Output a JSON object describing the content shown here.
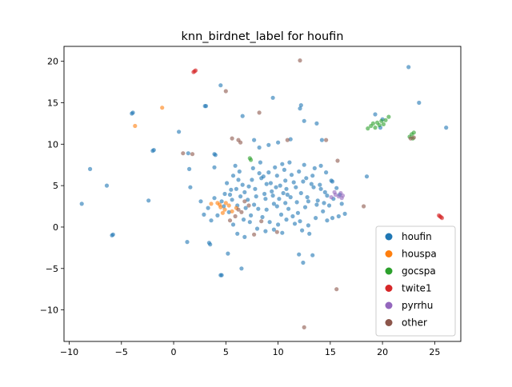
{
  "chart_data": {
    "type": "scatter",
    "title": "knn_birdnet_label for houfin",
    "xlabel": "",
    "ylabel": "",
    "xlim": [
      -10.5,
      27.5
    ],
    "ylim": [
      -13.8,
      21.8
    ],
    "x_ticks": [
      -10,
      -5,
      0,
      5,
      10,
      15,
      20,
      25
    ],
    "y_ticks": [
      -10,
      -5,
      0,
      5,
      10,
      15,
      20
    ],
    "x_tick_labels": [
      "−10",
      "−5",
      "0",
      "5",
      "10",
      "15",
      "20",
      "25"
    ],
    "y_tick_labels": [
      "−10",
      "−5",
      "0",
      "5",
      "10",
      "15",
      "20"
    ],
    "grid": false,
    "legend_position": "lower-right",
    "series": [
      {
        "name": "houfin",
        "color": "#1f77b4",
        "points": [
          [
            -4,
            13.7
          ],
          [
            -3.9,
            13.8
          ],
          [
            -1.9,
            9.3
          ],
          [
            -2,
            9.2
          ],
          [
            -8,
            7
          ],
          [
            -8.8,
            2.8
          ],
          [
            -6.4,
            5
          ],
          [
            -5.9,
            -1
          ],
          [
            -5.8,
            -0.9
          ],
          [
            -2.4,
            3.2
          ],
          [
            3,
            14.6
          ],
          [
            3.1,
            14.6
          ],
          [
            4.5,
            17.1
          ],
          [
            0.5,
            11.5
          ],
          [
            1.4,
            8.9
          ],
          [
            1.5,
            7
          ],
          [
            1.6,
            4.8
          ],
          [
            1.3,
            -1.8
          ],
          [
            3.4,
            -1.9
          ],
          [
            3.5,
            -2.1
          ],
          [
            4.5,
            -5.8
          ],
          [
            4.6,
            -5.8
          ],
          [
            5.2,
            -3.2
          ],
          [
            6.5,
            -5
          ],
          [
            3.9,
            8.8
          ],
          [
            4,
            8.7
          ],
          [
            3.9,
            7.2
          ],
          [
            6.6,
            13.4
          ],
          [
            9.5,
            15.6
          ],
          [
            12.2,
            14.7
          ],
          [
            12.1,
            14.3
          ],
          [
            12.5,
            12.8
          ],
          [
            11.2,
            10.6
          ],
          [
            13.7,
            12.5
          ],
          [
            14.2,
            10.5
          ],
          [
            15.1,
            5.6
          ],
          [
            15.2,
            5.5
          ],
          [
            14.7,
            0.8
          ],
          [
            13.3,
            -3.4
          ],
          [
            12,
            -3.3
          ],
          [
            12.4,
            -4.3
          ],
          [
            13,
            -0.8
          ],
          [
            18.5,
            6.1
          ],
          [
            19.8,
            12
          ],
          [
            19.3,
            13.6
          ],
          [
            20,
            13
          ],
          [
            22.5,
            19.3
          ],
          [
            23.5,
            15
          ],
          [
            26.1,
            12
          ],
          [
            4.6,
            3.1
          ],
          [
            5.5,
            4.5
          ],
          [
            5.3,
            1.8
          ],
          [
            6.1,
            2.6
          ],
          [
            6.8,
            4.2
          ],
          [
            7.5,
            5.7
          ],
          [
            8.2,
            6.5
          ],
          [
            8.9,
            5.2
          ],
          [
            9.4,
            4.3
          ],
          [
            10.2,
            5
          ],
          [
            10.8,
            4.6
          ],
          [
            11.5,
            5.4
          ],
          [
            12.2,
            4.1
          ],
          [
            12.8,
            3.6
          ],
          [
            13.4,
            4.8
          ],
          [
            14,
            5.1
          ],
          [
            14.5,
            4.2
          ],
          [
            13.8,
            3.2
          ],
          [
            12.6,
            2.4
          ],
          [
            11.9,
            1.7
          ],
          [
            11,
            2.2
          ],
          [
            10.3,
            1.5
          ],
          [
            9.6,
            2.8
          ],
          [
            8.8,
            3.4
          ],
          [
            8.1,
            2.2
          ],
          [
            7.4,
            1.4
          ],
          [
            6.7,
            0.9
          ],
          [
            7.1,
            3.3
          ],
          [
            7.8,
            4.6
          ],
          [
            8.4,
            5.9
          ],
          [
            9.1,
            6.6
          ],
          [
            9.9,
            6.2
          ],
          [
            10.6,
            6.9
          ],
          [
            11.3,
            6.3
          ],
          [
            12,
            6.7
          ],
          [
            12.7,
            5.9
          ],
          [
            13.3,
            6.2
          ],
          [
            6.2,
            5.7
          ],
          [
            5.7,
            6.2
          ],
          [
            5.1,
            5.3
          ],
          [
            4.9,
            4
          ],
          [
            5.6,
            3.3
          ],
          [
            6.4,
            3.7
          ],
          [
            6.9,
            2.3
          ],
          [
            7.7,
            2.7
          ],
          [
            8.5,
            1.2
          ],
          [
            9.2,
            0.6
          ],
          [
            10,
            0.3
          ],
          [
            10.8,
            0.9
          ],
          [
            11.6,
            0.4
          ],
          [
            12.3,
            -0.4
          ],
          [
            12.9,
            0.2
          ],
          [
            13.6,
            1.1
          ],
          [
            14.3,
            1.9
          ],
          [
            14.9,
            2.6
          ],
          [
            15.3,
            3.4
          ],
          [
            14.7,
            3.8
          ],
          [
            14.1,
            4.6
          ],
          [
            13.2,
            5.2
          ],
          [
            12.4,
            5.5
          ],
          [
            11.7,
            4.8
          ],
          [
            10.9,
            3.9
          ],
          [
            10.1,
            3.4
          ],
          [
            9.5,
            3.8
          ],
          [
            8.7,
            4
          ],
          [
            7.9,
            3.7
          ],
          [
            7.2,
            4.9
          ],
          [
            6.6,
            5.1
          ],
          [
            6,
            4.6
          ],
          [
            5.4,
            3.9
          ],
          [
            4.8,
            2.5
          ],
          [
            9.8,
            4.8
          ],
          [
            10.5,
            4.1
          ],
          [
            11.2,
            3.6
          ],
          [
            9.3,
            5.3
          ],
          [
            8.6,
            6.1
          ],
          [
            10.7,
            5.6
          ],
          [
            11.8,
            3
          ],
          [
            12.9,
            3.1
          ],
          [
            13.7,
            2.7
          ],
          [
            14.4,
            2.9
          ],
          [
            15.6,
            4.7
          ],
          [
            15.9,
            3.9
          ],
          [
            16.1,
            2.8
          ],
          [
            16.4,
            1.6
          ],
          [
            15.8,
            1.3
          ],
          [
            15.2,
            1.1
          ],
          [
            4.2,
            1.4
          ],
          [
            3.6,
            0.8
          ],
          [
            2.9,
            1.5
          ],
          [
            3.3,
            2.3
          ],
          [
            2.6,
            3.1
          ],
          [
            3.9,
            3.5
          ],
          [
            9.7,
            7.2
          ],
          [
            10.4,
            7.6
          ],
          [
            11.1,
            7.8
          ],
          [
            12.5,
            7.5
          ],
          [
            8.3,
            7.8
          ],
          [
            7.6,
            7.1
          ],
          [
            6.3,
            6.7
          ],
          [
            5.9,
            7.4
          ],
          [
            13.5,
            7.1
          ],
          [
            14.1,
            7.4
          ],
          [
            14.6,
            6.6
          ],
          [
            8.9,
            2.1
          ],
          [
            9.9,
            2.5
          ],
          [
            10.7,
            2.9
          ],
          [
            11.4,
            1.3
          ],
          [
            12.1,
            0.7
          ],
          [
            7.3,
            0.6
          ],
          [
            8,
            -0.2
          ],
          [
            8.8,
            -0.5
          ],
          [
            9.6,
            -0.3
          ],
          [
            10.4,
            -0.7
          ],
          [
            6.8,
            -1.2
          ],
          [
            6.1,
            -0.8
          ],
          [
            5.7,
            0.3
          ],
          [
            9.1,
            9.9
          ],
          [
            8.2,
            9.6
          ],
          [
            10,
            10.2
          ],
          [
            7.7,
            10.5
          ]
        ]
      },
      {
        "name": "houspa",
        "color": "#ff7f0e",
        "points": [
          [
            -1.1,
            14.4
          ],
          [
            -3.7,
            12.2
          ],
          [
            3.6,
            2.8
          ],
          [
            4.2,
            2.9
          ],
          [
            4.5,
            2.4
          ],
          [
            4.9,
            2.1
          ],
          [
            5.3,
            2.6
          ],
          [
            5.6,
            1.9
          ],
          [
            4.7,
            1.7
          ],
          [
            6,
            2.3
          ],
          [
            4.4,
            2.7
          ],
          [
            5,
            2.9
          ]
        ]
      },
      {
        "name": "gocspa",
        "color": "#2ca02c",
        "points": [
          [
            7.3,
            8.3
          ],
          [
            7.4,
            8.1
          ],
          [
            18.6,
            11.9
          ],
          [
            18.9,
            12.2
          ],
          [
            19.1,
            12.5
          ],
          [
            19.3,
            12
          ],
          [
            19.5,
            12.6
          ],
          [
            19.7,
            12.3
          ],
          [
            19.9,
            12.8
          ],
          [
            20.1,
            12.4
          ],
          [
            20.3,
            12.9
          ],
          [
            20.6,
            13.3
          ],
          [
            22.6,
            10.9
          ],
          [
            22.8,
            11.2
          ],
          [
            22.9,
            10.7
          ],
          [
            23,
            11.4
          ]
        ]
      },
      {
        "name": "twite1",
        "color": "#d62728",
        "points": [
          [
            1.9,
            18.7
          ],
          [
            2,
            18.8
          ],
          [
            2.1,
            18.9
          ],
          [
            25.4,
            1.4
          ],
          [
            25.5,
            1.3
          ],
          [
            25.6,
            1.2
          ],
          [
            25.7,
            1.1
          ]
        ]
      },
      {
        "name": "pyrrhu",
        "color": "#9467bd",
        "points": [
          [
            15.1,
            3.6
          ],
          [
            15.5,
            3.9
          ],
          [
            15.8,
            3.7
          ],
          [
            16,
            4.1
          ],
          [
            16.2,
            3.8
          ],
          [
            16.1,
            3.5
          ],
          [
            15.4,
            4.2
          ]
        ]
      },
      {
        "name": "other",
        "color": "#8c564b",
        "points": [
          [
            12.1,
            20.1
          ],
          [
            5,
            16.4
          ],
          [
            8.2,
            13.8
          ],
          [
            0.9,
            8.9
          ],
          [
            1.8,
            8.8
          ],
          [
            5.6,
            10.7
          ],
          [
            6.2,
            10.5
          ],
          [
            6.4,
            10.2
          ],
          [
            10.9,
            10.5
          ],
          [
            14.6,
            10.5
          ],
          [
            15.7,
            8
          ],
          [
            18.2,
            2.5
          ],
          [
            22.7,
            10.7
          ],
          [
            23,
            10.8
          ],
          [
            15.6,
            -7.5
          ],
          [
            12.5,
            -12.1
          ],
          [
            7.7,
            -0.9
          ],
          [
            9.9,
            -0.6
          ],
          [
            6.2,
            2.1
          ],
          [
            6.8,
            3.1
          ],
          [
            5.9,
            1.3
          ],
          [
            7.2,
            2.6
          ],
          [
            5.4,
            0.8
          ],
          [
            6.5,
            1.8
          ],
          [
            8.4,
            0.7
          ]
        ]
      }
    ]
  }
}
